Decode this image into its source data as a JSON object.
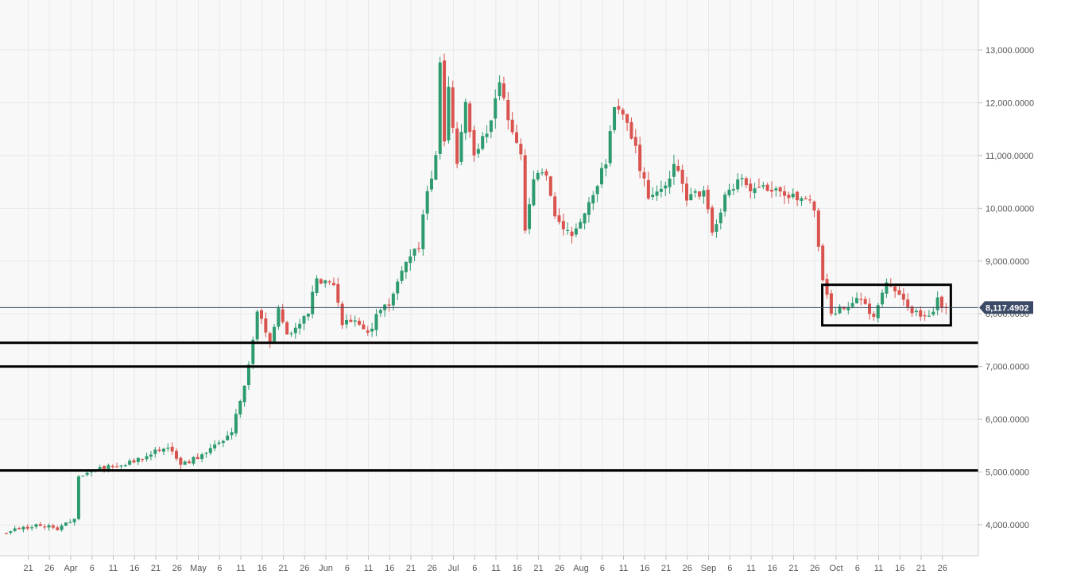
{
  "chart_data": {
    "type": "candlestick",
    "current_price": 8117.4902,
    "current_price_label": "8,117.4902",
    "y_range": [
      3500,
      13900
    ],
    "y_ticks": [
      {
        "value": 4000,
        "label": "4,000.0000"
      },
      {
        "value": 5000,
        "label": "5,000.0000"
      },
      {
        "value": 6000,
        "label": "6,000.0000"
      },
      {
        "value": 7000,
        "label": "7,000.0000"
      },
      {
        "value": 8000,
        "label": "8,000.0000"
      },
      {
        "value": 9000,
        "label": "9,000.0000"
      },
      {
        "value": 10000,
        "label": "10,000.0000"
      },
      {
        "value": 11000,
        "label": "11,000.0000"
      },
      {
        "value": 12000,
        "label": "12,000.0000"
      },
      {
        "value": 13000,
        "label": "13,000.0000"
      }
    ],
    "x_ticks": [
      "21",
      "26",
      "Apr",
      "6",
      "11",
      "16",
      "21",
      "26",
      "May",
      "6",
      "11",
      "16",
      "21",
      "26",
      "Jun",
      "6",
      "11",
      "16",
      "21",
      "26",
      "Jul",
      "6",
      "11",
      "16",
      "21",
      "26",
      "Aug",
      "6",
      "11",
      "16",
      "21",
      "26",
      "Sep",
      "6",
      "11",
      "16",
      "21",
      "26",
      "Oct",
      "6",
      "11",
      "16",
      "21",
      "26"
    ],
    "support_lines": [
      7450,
      7000,
      5030
    ],
    "consolidation_box": {
      "x_from": "Sep 25",
      "x_to": "Oct 23",
      "y_from": 7780,
      "y_to": 8550
    },
    "close_path": [
      {
        "date": "Mar 16",
        "close": 3870
      },
      {
        "date": "Mar 23",
        "close": 4000
      },
      {
        "date": "Mar 28",
        "close": 3930
      },
      {
        "date": "Apr 1",
        "close": 4120
      },
      {
        "date": "Apr 2",
        "close": 4900
      },
      {
        "date": "Apr 8",
        "close": 5080
      },
      {
        "date": "Apr 14",
        "close": 5180
      },
      {
        "date": "Apr 23",
        "close": 5490
      },
      {
        "date": "Apr 26",
        "close": 5150
      },
      {
        "date": "Apr 30",
        "close": 5270
      },
      {
        "date": "May 8",
        "close": 5740
      },
      {
        "date": "May 12",
        "close": 6980
      },
      {
        "date": "May 14",
        "close": 8100
      },
      {
        "date": "May 17",
        "close": 7450
      },
      {
        "date": "May 19",
        "close": 8150
      },
      {
        "date": "May 21",
        "close": 7600
      },
      {
        "date": "May 26",
        "close": 8000
      },
      {
        "date": "May 28",
        "close": 8700
      },
      {
        "date": "Jun 1",
        "close": 8500
      },
      {
        "date": "Jun 3",
        "close": 7800
      },
      {
        "date": "Jun 6",
        "close": 7900
      },
      {
        "date": "Jun 9",
        "close": 7600
      },
      {
        "date": "Jun 11",
        "close": 7950
      },
      {
        "date": "Jun 14",
        "close": 8200
      },
      {
        "date": "Jun 17",
        "close": 8800
      },
      {
        "date": "Jun 21",
        "close": 9300
      },
      {
        "date": "Jun 23",
        "close": 10300
      },
      {
        "date": "Jun 25",
        "close": 11000
      },
      {
        "date": "Jun 26",
        "close": 12800
      },
      {
        "date": "Jun 27",
        "close": 11200
      },
      {
        "date": "Jun 28",
        "close": 12300
      },
      {
        "date": "Jun 30",
        "close": 10800
      },
      {
        "date": "Jul 2",
        "close": 12000
      },
      {
        "date": "Jul 4",
        "close": 11000
      },
      {
        "date": "Jul 8",
        "close": 11600
      },
      {
        "date": "Jul 10",
        "close": 12500
      },
      {
        "date": "Jul 13",
        "close": 11400
      },
      {
        "date": "Jul 15",
        "close": 11000
      },
      {
        "date": "Jul 16",
        "close": 9500
      },
      {
        "date": "Jul 18",
        "close": 10600
      },
      {
        "date": "Jul 21",
        "close": 10700
      },
      {
        "date": "Jul 23",
        "close": 9800
      },
      {
        "date": "Jul 27",
        "close": 9500
      },
      {
        "date": "Jul 31",
        "close": 10100
      },
      {
        "date": "Aug 4",
        "close": 10900
      },
      {
        "date": "Aug 6",
        "close": 11900
      },
      {
        "date": "Aug 8",
        "close": 11800
      },
      {
        "date": "Aug 10",
        "close": 11400
      },
      {
        "date": "Aug 14",
        "close": 10200
      },
      {
        "date": "Aug 18",
        "close": 10400
      },
      {
        "date": "Aug 20",
        "close": 10900
      },
      {
        "date": "Aug 23",
        "close": 10200
      },
      {
        "date": "Aug 27",
        "close": 10300
      },
      {
        "date": "Aug 29",
        "close": 9500
      },
      {
        "date": "Sep 2",
        "close": 10400
      },
      {
        "date": "Sep 5",
        "close": 10500
      },
      {
        "date": "Sep 8",
        "close": 10300
      },
      {
        "date": "Sep 12",
        "close": 10400
      },
      {
        "date": "Sep 17",
        "close": 10200
      },
      {
        "date": "Sep 20",
        "close": 10200
      },
      {
        "date": "Sep 22",
        "close": 10000
      },
      {
        "date": "Sep 24",
        "close": 8600
      },
      {
        "date": "Sep 26",
        "close": 8050
      },
      {
        "date": "Sep 29",
        "close": 8100
      },
      {
        "date": "Oct 2",
        "close": 8350
      },
      {
        "date": "Oct 6",
        "close": 7900
      },
      {
        "date": "Oct 9",
        "close": 8600
      },
      {
        "date": "Oct 12",
        "close": 8300
      },
      {
        "date": "Oct 16",
        "close": 8000
      },
      {
        "date": "Oct 19",
        "close": 7950
      },
      {
        "date": "Oct 21",
        "close": 8250
      },
      {
        "date": "Oct 23",
        "close": 8117
      }
    ]
  },
  "colors": {
    "up": "#2e9b6e",
    "down": "#d9534f",
    "grid": "#e9e9e9",
    "plot_bg": "#f8f8f8",
    "current_price_line": "#3b4a66",
    "current_price_tag": "#3b4a66",
    "support_line": "#000000"
  }
}
